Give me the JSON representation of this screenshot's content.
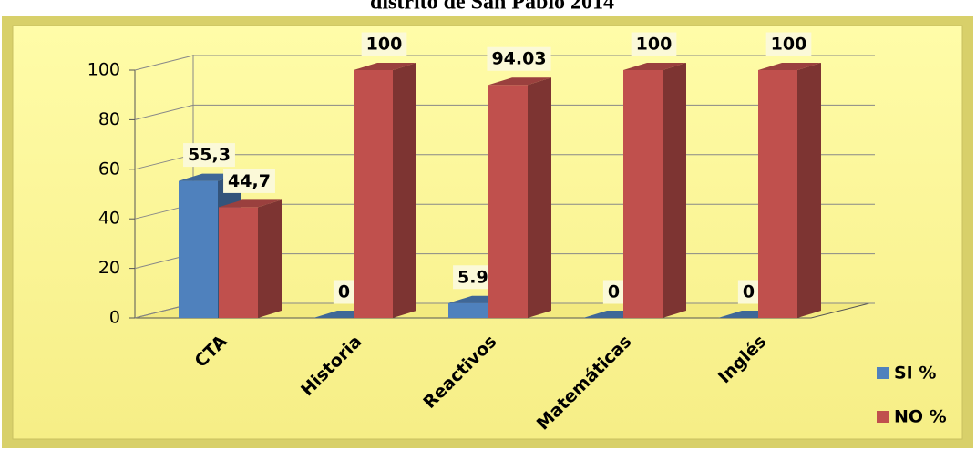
{
  "chart_data": {
    "type": "bar3d",
    "title": "distrito de San Pablo 2014",
    "categories": [
      "CTA",
      "Historia",
      "Reactivos",
      "Matemáticas",
      "Inglés"
    ],
    "series": [
      {
        "name": "SI %",
        "color": "#4f81bd",
        "values": [
          55.3,
          0,
          5.97,
          0,
          0
        ],
        "value_labels": [
          "55,3",
          "0",
          "5.97",
          "0",
          "0"
        ]
      },
      {
        "name": "NO %",
        "color": "#c0504d",
        "values": [
          44.7,
          100,
          94.03,
          100,
          100
        ],
        "value_labels": [
          "44,7",
          "100",
          "94.03",
          "100",
          "100"
        ]
      }
    ],
    "ylim": [
      0,
      100
    ],
    "yticks": [
      0,
      20,
      40,
      60,
      80,
      100
    ],
    "grid": true,
    "legend": "right"
  }
}
